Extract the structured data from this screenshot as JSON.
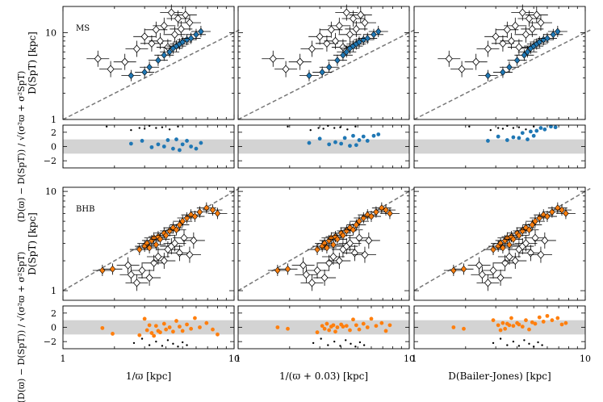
{
  "chart_data": {
    "type": "scatter",
    "columns": [
      {
        "xlabel": "1/ϖ [kpc]"
      },
      {
        "xlabel": "1/(ϖ + 0.03) [kpc]"
      },
      {
        "xlabel": "D(Bailer-Jones) [kpc]"
      }
    ],
    "x_log_range": [
      1,
      10
    ],
    "x_ticks": [
      "1",
      "10"
    ],
    "main_ylabel": "D(SpT) [kpc]",
    "resid_ylabel": "(D(ϖ) − D(SpT)) / √(σ²ϖ + σ²SpT)",
    "resid_ylim": [
      -3,
      3
    ],
    "resid_ticks": [
      "2",
      "0",
      "−2"
    ],
    "band": [
      -1,
      1
    ],
    "one_to_one_line": true,
    "panels": [
      {
        "label": "MS",
        "ylim": [
          1,
          20
        ],
        "y_ticks": [
          "1",
          "10"
        ],
        "color": "#1f77b4",
        "points": [
          {
            "x": [
              2.5,
              3.0,
              3.2,
              3.6,
              3.9,
              4.2,
              4.4,
              4.6,
              4.8,
              5.0,
              5.3,
              5.6,
              6.0,
              6.4
            ],
            "y": [
              3.2,
              3.5,
              4.0,
              4.8,
              5.5,
              6.0,
              6.6,
              7.0,
              7.4,
              7.8,
              8.3,
              8.6,
              9.5,
              10.3
            ]
          },
          {
            "x": [
              2.6,
              3.1,
              3.4,
              3.8,
              4.1,
              4.3,
              4.5,
              4.7,
              4.9,
              5.1,
              5.4,
              5.7,
              6.2,
              6.6
            ],
            "y": [
              3.2,
              3.5,
              4.0,
              4.8,
              5.5,
              6.0,
              6.6,
              7.0,
              7.4,
              7.8,
              8.3,
              8.6,
              9.5,
              10.3
            ]
          },
          {
            "x": [
              2.7,
              3.3,
              3.6,
              4.0,
              4.4,
              4.6,
              4.8,
              5.0,
              5.2,
              5.4,
              5.7,
              6.0,
              6.5,
              6.9
            ],
            "y": [
              3.2,
              3.5,
              4.0,
              4.8,
              5.5,
              6.0,
              6.6,
              7.0,
              7.4,
              7.8,
              8.3,
              8.6,
              9.5,
              10.3
            ]
          }
        ],
        "outliers": {
          "x": [
            1.6,
            1.9,
            2.3,
            2.7,
            3.0,
            3.3,
            3.5,
            3.7,
            3.9,
            4.1,
            4.3,
            4.5,
            4.7,
            4.9,
            5.2,
            5.5
          ],
          "y": [
            5.0,
            3.8,
            4.6,
            6.5,
            9.0,
            7.5,
            10.8,
            8.0,
            12.0,
            6.8,
            17.0,
            9.5,
            14.5,
            11.0,
            16.0,
            13.0
          ]
        },
        "residuals": [
          {
            "x": [
              2.5,
              2.9,
              3.3,
              3.6,
              3.9,
              4.1,
              4.4,
              4.6,
              4.8,
              5.0,
              5.3,
              5.6,
              6.0,
              6.4
            ],
            "y": [
              0.4,
              0.8,
              -0.1,
              0.3,
              0.0,
              0.9,
              -0.3,
              1.0,
              -0.5,
              0.3,
              0.8,
              0.0,
              -0.3,
              0.5
            ]
          },
          {
            "x": [
              2.6,
              3.0,
              3.4,
              3.7,
              4.0,
              4.2,
              4.5,
              4.7,
              4.9,
              5.1,
              5.4,
              5.7,
              6.2,
              6.6
            ],
            "y": [
              0.5,
              1.1,
              0.3,
              0.6,
              0.4,
              1.2,
              0.1,
              1.5,
              0.2,
              0.9,
              1.4,
              0.8,
              1.5,
              1.7
            ]
          },
          {
            "x": [
              2.7,
              3.1,
              3.5,
              3.8,
              4.1,
              4.3,
              4.6,
              4.8,
              5.0,
              5.2,
              5.5,
              5.8,
              6.3,
              6.7
            ],
            "y": [
              0.8,
              1.4,
              0.9,
              1.3,
              1.2,
              1.9,
              1.0,
              2.1,
              1.5,
              2.2,
              2.6,
              2.4,
              2.8,
              2.7
            ]
          }
        ],
        "resid_outliers": {
          "x": [
            1.8,
            2.5,
            2.8,
            3.0,
            3.2,
            3.5,
            3.8,
            4.2,
            4.7
          ],
          "y": [
            2.8,
            2.3,
            2.6,
            2.5,
            2.9,
            2.6,
            2.7,
            2.4,
            2.8
          ]
        }
      },
      {
        "label": "BHB",
        "ylim": [
          0.8,
          11
        ],
        "y_ticks": [
          "1",
          "10"
        ],
        "color": "#ff7f0e",
        "points": [
          {
            "x": [
              1.7,
              1.95,
              2.8,
              3.0,
              3.1,
              3.2,
              3.3,
              3.4,
              3.5,
              3.6,
              3.7,
              3.9,
              4.0,
              4.2,
              4.4,
              4.6,
              4.8,
              5.0,
              5.3,
              5.6,
              5.9,
              6.3,
              6.9,
              7.5,
              8.0
            ],
            "y": [
              1.6,
              1.65,
              2.6,
              2.8,
              3.0,
              2.7,
              3.2,
              3.4,
              2.9,
              3.5,
              3.3,
              3.8,
              3.6,
              4.0,
              4.3,
              4.1,
              4.6,
              5.0,
              5.4,
              5.8,
              5.6,
              6.2,
              6.8,
              6.5,
              6.0
            ]
          },
          {
            "x": [
              1.7,
              1.95,
              2.9,
              3.1,
              3.2,
              3.3,
              3.4,
              3.5,
              3.6,
              3.7,
              3.8,
              4.0,
              4.1,
              4.3,
              4.5,
              4.7,
              4.9,
              5.1,
              5.4,
              5.7,
              6.0,
              6.4,
              6.9,
              7.3,
              7.7
            ],
            "y": [
              1.6,
              1.65,
              2.6,
              2.8,
              3.0,
              2.7,
              3.2,
              3.4,
              2.9,
              3.5,
              3.3,
              3.8,
              3.6,
              4.0,
              4.3,
              4.1,
              4.6,
              5.0,
              5.4,
              5.8,
              5.6,
              6.2,
              6.8,
              6.5,
              6.0
            ]
          },
          {
            "x": [
              1.7,
              1.95,
              2.9,
              3.1,
              3.2,
              3.3,
              3.4,
              3.5,
              3.6,
              3.7,
              3.8,
              4.0,
              4.1,
              4.3,
              4.5,
              4.7,
              4.9,
              5.1,
              5.4,
              5.7,
              6.0,
              6.4,
              6.9,
              7.3,
              7.7
            ],
            "y": [
              1.6,
              1.65,
              2.6,
              2.8,
              3.0,
              2.7,
              3.2,
              3.4,
              2.9,
              3.5,
              3.3,
              3.8,
              3.6,
              4.0,
              4.3,
              4.1,
              4.6,
              5.0,
              5.4,
              5.8,
              5.6,
              6.2,
              6.8,
              6.5,
              6.0
            ]
          }
        ],
        "outliers": {
          "x": [
            2.4,
            2.5,
            2.7,
            2.9,
            3.2,
            3.4,
            3.6,
            3.9,
            4.1,
            4.3,
            4.5,
            4.8,
            5.1,
            5.5,
            5.8
          ],
          "y": [
            1.8,
            1.45,
            1.2,
            1.6,
            1.35,
            1.9,
            2.2,
            2.0,
            2.6,
            2.8,
            3.0,
            2.4,
            3.4,
            2.3,
            3.2
          ]
        },
        "residuals": [
          {
            "x": [
              1.7,
              1.95,
              2.8,
              3.0,
              3.1,
              3.2,
              3.3,
              3.4,
              3.5,
              3.6,
              3.7,
              3.9,
              4.0,
              4.2,
              4.4,
              4.6,
              4.8,
              5.0,
              5.3,
              5.6,
              5.9,
              6.3,
              6.9,
              7.5,
              8.0
            ],
            "y": [
              -0.1,
              -0.9,
              -1.1,
              1.2,
              -0.4,
              0.3,
              -0.8,
              -1.2,
              0.2,
              -0.5,
              -0.7,
              0.5,
              -0.3,
              0.0,
              -0.6,
              0.9,
              0.1,
              -0.5,
              0.4,
              -0.2,
              1.3,
              0.0,
              0.6,
              -0.3,
              -1.0
            ]
          },
          {
            "x": [
              1.7,
              1.95,
              2.9,
              3.1,
              3.2,
              3.3,
              3.4,
              3.5,
              3.6,
              3.7,
              3.8,
              4.0,
              4.1,
              4.3,
              4.5,
              4.7,
              4.9,
              5.1,
              5.4,
              5.7,
              6.0,
              6.4,
              6.9,
              7.3,
              7.7
            ],
            "y": [
              0.0,
              -0.2,
              -0.7,
              0.2,
              -0.2,
              0.5,
              -0.4,
              0.1,
              0.3,
              -0.6,
              0.0,
              0.4,
              0.1,
              0.2,
              -0.4,
              1.1,
              0.3,
              -0.3,
              0.5,
              0.0,
              1.2,
              0.2,
              0.6,
              -0.5,
              0.3
            ]
          },
          {
            "x": [
              1.7,
              1.95,
              2.9,
              3.1,
              3.2,
              3.3,
              3.4,
              3.5,
              3.6,
              3.7,
              3.8,
              4.0,
              4.1,
              4.3,
              4.5,
              4.7,
              4.9,
              5.1,
              5.4,
              5.7,
              6.0,
              6.4,
              6.9,
              7.3,
              7.7
            ],
            "y": [
              0.0,
              -0.2,
              1.0,
              0.3,
              -0.4,
              0.6,
              -0.2,
              0.5,
              0.3,
              1.3,
              0.2,
              0.6,
              0.4,
              0.1,
              1.0,
              -0.3,
              0.7,
              0.5,
              1.4,
              0.8,
              1.6,
              1.0,
              1.3,
              0.4,
              0.6
            ]
          }
        ],
        "resid_outliers": {
          "x": [
            2.6,
            2.9,
            3.2,
            3.5,
            3.8,
            4.1,
            4.4,
            4.7,
            5.0,
            5.3
          ],
          "y": [
            -2.2,
            -1.6,
            -2.5,
            -2.0,
            -2.6,
            -1.8,
            -2.3,
            -2.7,
            -2.1,
            -2.5
          ]
        }
      }
    ]
  }
}
